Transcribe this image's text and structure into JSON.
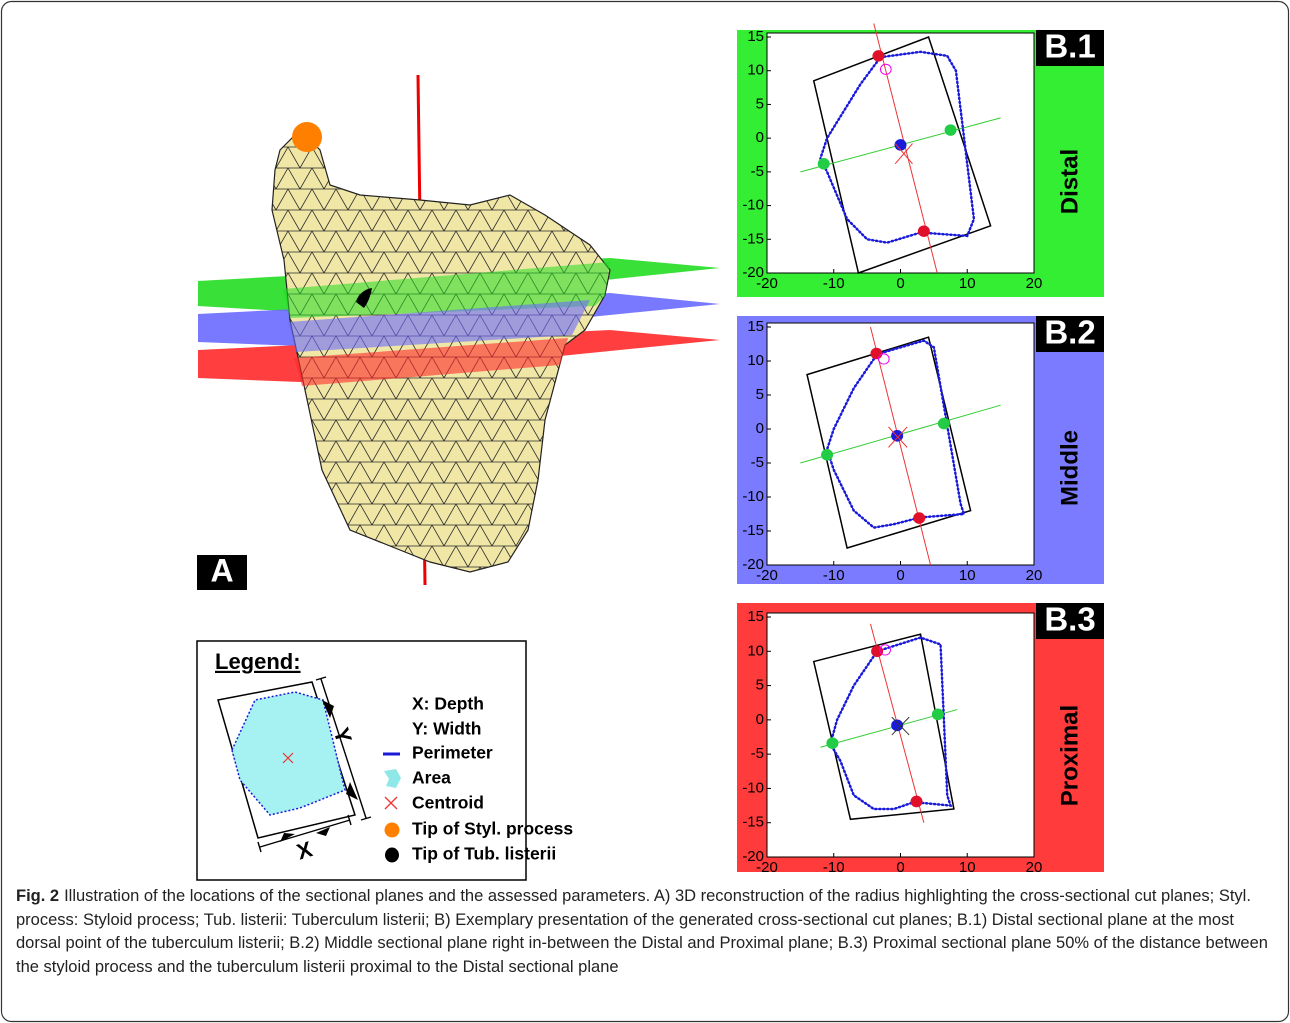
{
  "panel_a": {
    "label": "A"
  },
  "legend": {
    "title": "Legend:",
    "axis_x": "X",
    "axis_y": "Y",
    "items": [
      "X: Depth",
      "Y: Width",
      "Perimeter",
      "Area",
      "Centroid",
      "Tip of Styl. process",
      "Tip of Tub. listerii"
    ]
  },
  "plots": [
    {
      "label": "B.1",
      "plane": "Distal",
      "color": "#33ee33",
      "xlim": [
        -20,
        20
      ],
      "ylim": [
        -20,
        15
      ],
      "xticks": [
        -20,
        -10,
        0,
        10,
        20
      ],
      "yticks": [
        15,
        10,
        5,
        0,
        -5,
        -10,
        -15,
        -20
      ]
    },
    {
      "label": "B.2",
      "plane": "Middle",
      "color": "#7b7bff",
      "xlim": [
        -20,
        20
      ],
      "ylim": [
        -20,
        15
      ],
      "xticks": [
        -20,
        -10,
        0,
        10,
        20
      ],
      "yticks": [
        15,
        10,
        5,
        0,
        -5,
        -10,
        -15,
        -20
      ]
    },
    {
      "label": "B.3",
      "plane": "Proximal",
      "color": "#ff3b3b",
      "xlim": [
        -20,
        20
      ],
      "ylim": [
        -20,
        15
      ],
      "xticks": [
        -20,
        -10,
        0,
        10,
        20
      ],
      "yticks": [
        15,
        10,
        5,
        0,
        -5,
        -10,
        -15,
        -20
      ]
    }
  ],
  "caption": {
    "label": "Fig. 2",
    "text": "Illustration of the locations of the sectional planes and the assessed parameters. A) 3D reconstruction of the radius highlighting the cross-sectional cut planes; Styl. process: Styloid process; Tub. listerii: Tuberculum listerii; B) Exemplary presentation of the generated cross-sectional cut planes; B.1) Distal sectional plane at the most dorsal point of the tuberculum listerii; B.2) Middle sectional plane right in-between the Distal and Proximal plane; B.3) Proximal sectional plane 50% of the distance between the styloid process and the tuberculum listerii proximal to the Distal sectional plane"
  }
}
